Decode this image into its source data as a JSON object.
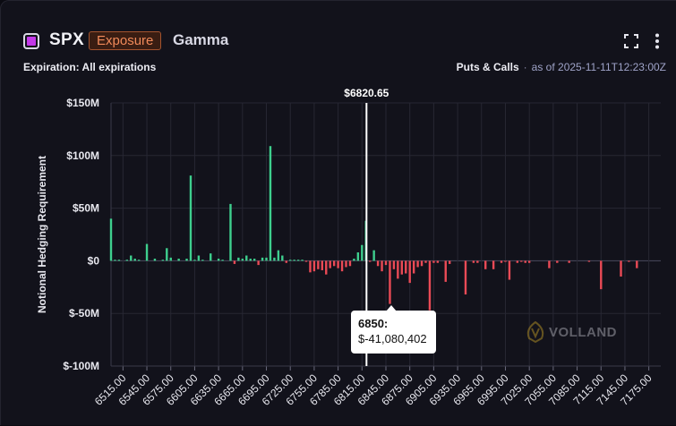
{
  "header": {
    "ticker": "SPX",
    "exposure_label": "Exposure",
    "gamma_label": "Gamma",
    "expiration": "Expiration: All expirations",
    "puts_calls": "Puts & Calls",
    "separator": "·",
    "as_of": "as of 2025-11-11T12:23:00Z",
    "icons": [
      "fullscreen-icon",
      "more-vertical-icon"
    ],
    "accent_color": "#c338e8"
  },
  "tooltip": {
    "strike": "6850:",
    "value": "$-41,080,402"
  },
  "watermark": {
    "text": "VOLLAND",
    "icon": "volland-logo-icon"
  },
  "colors": {
    "positive": "#3ecf8e",
    "negative": "#ea4a56",
    "spot_line": "#ffffff"
  },
  "chart_data": {
    "type": "bar",
    "title": "",
    "ylabel": "Notional Hedging Requirement",
    "xlabel": "",
    "ylim": [
      -100,
      150
    ],
    "y_unit": "$M",
    "y_ticks": [
      150,
      100,
      50,
      0,
      -50,
      -100
    ],
    "y_tick_labels": [
      "$150M",
      "$100M",
      "$50M",
      "$0",
      "$-50M",
      "$-100M"
    ],
    "x_ticks": [
      6515,
      6545,
      6575,
      6605,
      6635,
      6665,
      6695,
      6725,
      6755,
      6785,
      6815,
      6845,
      6875,
      6905,
      6935,
      6965,
      6995,
      7025,
      7055,
      7085,
      7115,
      7145,
      7175
    ],
    "x_tick_labels": [
      "6515.00",
      "6545.00",
      "6575.00",
      "6605.00",
      "6635.00",
      "6665.00",
      "6695.00",
      "6725.00",
      "6755.00",
      "6785.00",
      "6815.00",
      "6845.00",
      "6875.00",
      "6905.00",
      "6935.00",
      "6965.00",
      "6995.00",
      "7025.00",
      "7055.00",
      "7085.00",
      "7115.00",
      "7145.00",
      "7175.00"
    ],
    "x_range": [
      6500,
      7190
    ],
    "spot_price": 6820.65,
    "spot_label": "$6820.65",
    "grid": true,
    "bars": [
      {
        "x": 6500,
        "y": 40
      },
      {
        "x": 6505,
        "y": 1
      },
      {
        "x": 6510,
        "y": 1
      },
      {
        "x": 6520,
        "y": 1
      },
      {
        "x": 6525,
        "y": 5
      },
      {
        "x": 6530,
        "y": 2
      },
      {
        "x": 6535,
        "y": 1
      },
      {
        "x": 6545,
        "y": 16
      },
      {
        "x": 6555,
        "y": 2
      },
      {
        "x": 6565,
        "y": 1
      },
      {
        "x": 6570,
        "y": 12
      },
      {
        "x": 6575,
        "y": 3
      },
      {
        "x": 6585,
        "y": 2
      },
      {
        "x": 6595,
        "y": 2
      },
      {
        "x": 6600,
        "y": 81
      },
      {
        "x": 6605,
        "y": 1
      },
      {
        "x": 6610,
        "y": 5
      },
      {
        "x": 6615,
        "y": 1
      },
      {
        "x": 6625,
        "y": 7
      },
      {
        "x": 6635,
        "y": 2
      },
      {
        "x": 6640,
        "y": 1
      },
      {
        "x": 6650,
        "y": 54
      },
      {
        "x": 6655,
        "y": -3
      },
      {
        "x": 6660,
        "y": 3
      },
      {
        "x": 6665,
        "y": 2
      },
      {
        "x": 6670,
        "y": 5
      },
      {
        "x": 6675,
        "y": 2
      },
      {
        "x": 6680,
        "y": 2
      },
      {
        "x": 6685,
        "y": -4
      },
      {
        "x": 6690,
        "y": 3
      },
      {
        "x": 6695,
        "y": 3
      },
      {
        "x": 6700,
        "y": 109
      },
      {
        "x": 6705,
        "y": 3
      },
      {
        "x": 6710,
        "y": 10
      },
      {
        "x": 6715,
        "y": 5
      },
      {
        "x": 6720,
        "y": -2
      },
      {
        "x": 6725,
        "y": 1
      },
      {
        "x": 6730,
        "y": 1
      },
      {
        "x": 6735,
        "y": 1
      },
      {
        "x": 6740,
        "y": 1
      },
      {
        "x": 6745,
        "y": -1
      },
      {
        "x": 6750,
        "y": -11
      },
      {
        "x": 6755,
        "y": -10
      },
      {
        "x": 6760,
        "y": -8
      },
      {
        "x": 6765,
        "y": -9
      },
      {
        "x": 6770,
        "y": -13
      },
      {
        "x": 6775,
        "y": -7
      },
      {
        "x": 6780,
        "y": -5
      },
      {
        "x": 6785,
        "y": -7
      },
      {
        "x": 6790,
        "y": -10
      },
      {
        "x": 6795,
        "y": -6
      },
      {
        "x": 6800,
        "y": -5
      },
      {
        "x": 6805,
        "y": 2
      },
      {
        "x": 6810,
        "y": 8
      },
      {
        "x": 6815,
        "y": 15
      },
      {
        "x": 6820,
        "y": 38
      },
      {
        "x": 6825,
        "y": -1
      },
      {
        "x": 6830,
        "y": 10
      },
      {
        "x": 6835,
        "y": -5
      },
      {
        "x": 6840,
        "y": -10
      },
      {
        "x": 6845,
        "y": -4
      },
      {
        "x": 6850,
        "y": -41
      },
      {
        "x": 6855,
        "y": -8
      },
      {
        "x": 6860,
        "y": -17
      },
      {
        "x": 6865,
        "y": -13
      },
      {
        "x": 6870,
        "y": -12
      },
      {
        "x": 6875,
        "y": -21
      },
      {
        "x": 6880,
        "y": -12
      },
      {
        "x": 6885,
        "y": -6
      },
      {
        "x": 6890,
        "y": -5
      },
      {
        "x": 6895,
        "y": -2
      },
      {
        "x": 6900,
        "y": -47
      },
      {
        "x": 6905,
        "y": -2
      },
      {
        "x": 6910,
        "y": -2
      },
      {
        "x": 6920,
        "y": -20
      },
      {
        "x": 6925,
        "y": -3
      },
      {
        "x": 6945,
        "y": -32
      },
      {
        "x": 6955,
        "y": -2
      },
      {
        "x": 6960,
        "y": -2
      },
      {
        "x": 6970,
        "y": -8
      },
      {
        "x": 6980,
        "y": -8
      },
      {
        "x": 6990,
        "y": -2
      },
      {
        "x": 6995,
        "y": -1
      },
      {
        "x": 7000,
        "y": -18
      },
      {
        "x": 7010,
        "y": -2
      },
      {
        "x": 7015,
        "y": -1
      },
      {
        "x": 7020,
        "y": -2
      },
      {
        "x": 7025,
        "y": -2
      },
      {
        "x": 7050,
        "y": -7
      },
      {
        "x": 7060,
        "y": -2
      },
      {
        "x": 7075,
        "y": -2
      },
      {
        "x": 7100,
        "y": -1
      },
      {
        "x": 7115,
        "y": -27
      },
      {
        "x": 7140,
        "y": -15
      },
      {
        "x": 7150,
        "y": -1
      },
      {
        "x": 7160,
        "y": -7
      }
    ]
  }
}
